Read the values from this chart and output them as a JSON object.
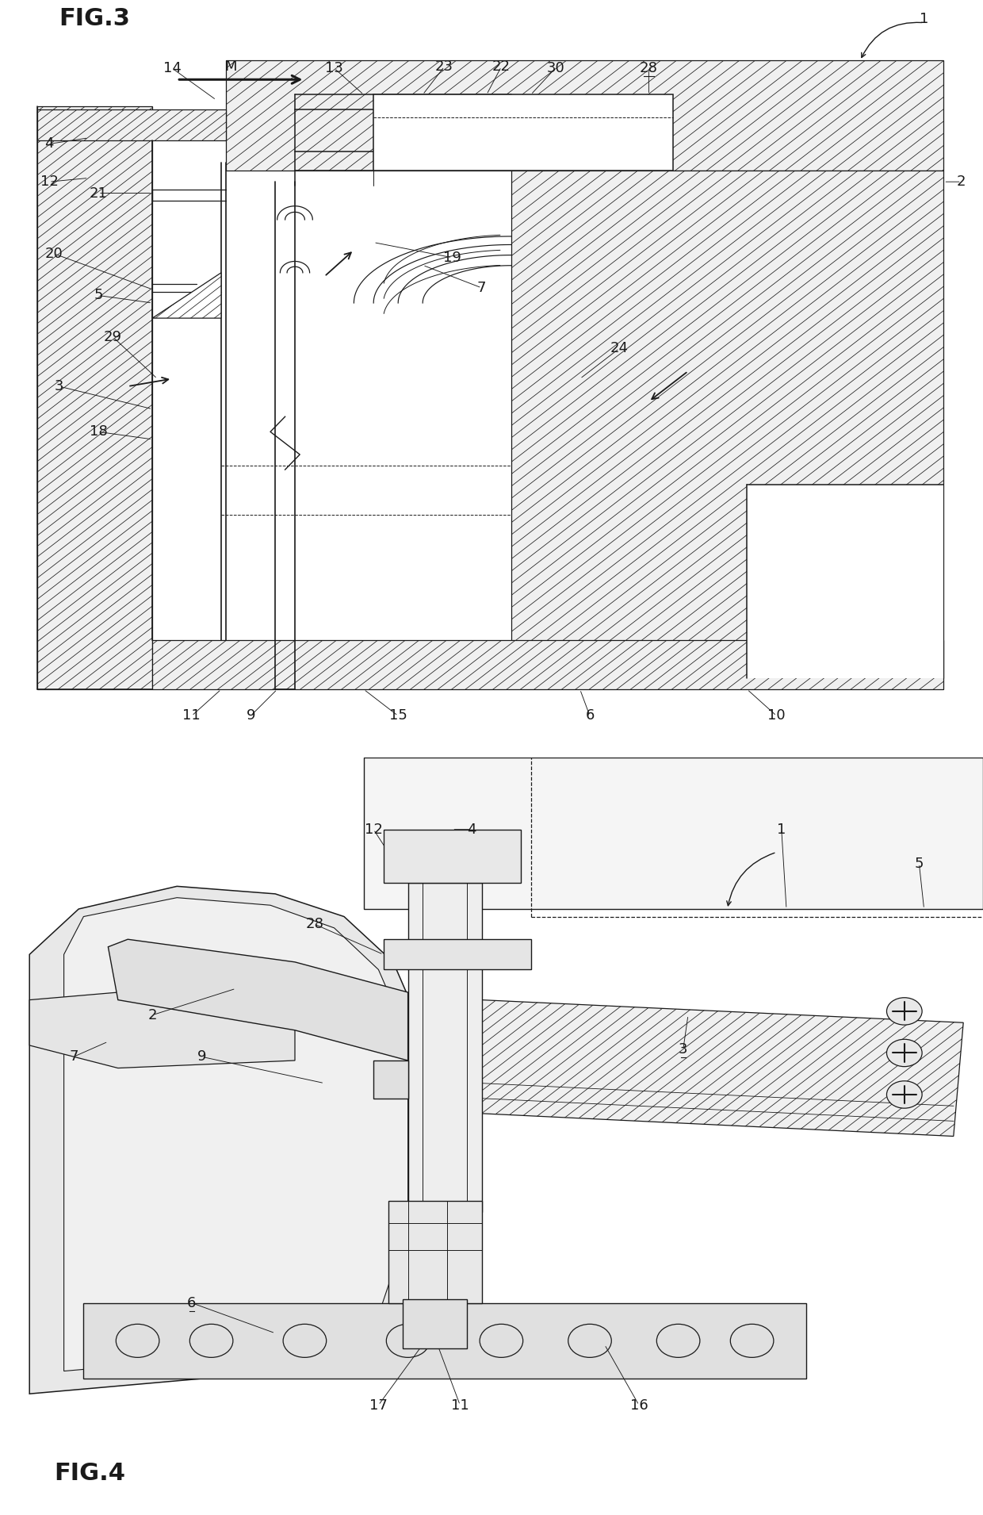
{
  "bg": "#ffffff",
  "lc": "#1a1a1a",
  "fig3_title": "FIG.3",
  "fig4_title": "FIG.4",
  "arrow_label": "M"
}
